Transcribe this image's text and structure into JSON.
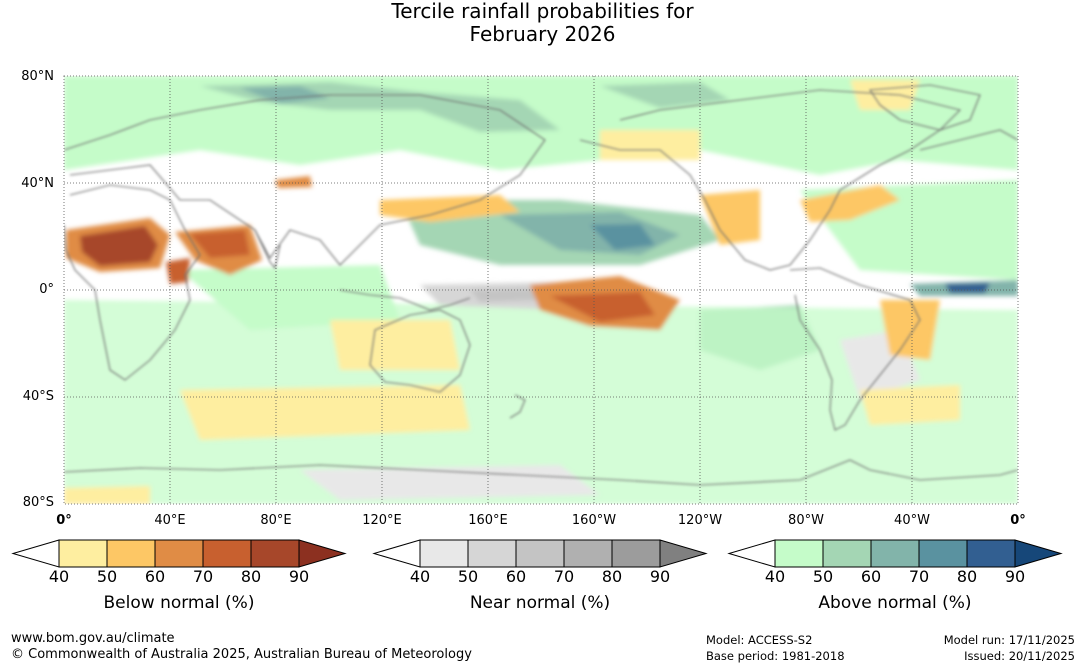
{
  "title": {
    "line1": "Tercile rainfall probabilities for",
    "line2": "February 2026"
  },
  "latitude_labels": [
    "80°N",
    "40°N",
    "0°",
    "40°S",
    "80°S"
  ],
  "longitude_labels": [
    "0°",
    "40°E",
    "80°E",
    "120°E",
    "160°E",
    "160°W",
    "120°W",
    "80°W",
    "40°W",
    "0°"
  ],
  "colorbars": [
    {
      "name": "below",
      "title": "Below normal (%)",
      "ticks": [
        "40",
        "50",
        "60",
        "70",
        "80",
        "90"
      ],
      "colors": [
        "#ffffff",
        "#feeea0",
        "#fdc765",
        "#e08c45",
        "#c8602f",
        "#a7472a",
        "#8c3020"
      ]
    },
    {
      "name": "near",
      "title": "Near normal (%)",
      "ticks": [
        "40",
        "50",
        "60",
        "70",
        "80",
        "90"
      ],
      "colors": [
        "#ffffff",
        "#e8e8e8",
        "#d6d6d6",
        "#c4c4c4",
        "#b0b0b0",
        "#9c9c9c",
        "#808080"
      ]
    },
    {
      "name": "above",
      "title": "Above normal (%)",
      "ticks": [
        "40",
        "50",
        "60",
        "70",
        "80",
        "90"
      ],
      "colors": [
        "#ffffff",
        "#c5fcc9",
        "#a4d6b4",
        "#82b4aa",
        "#5a92a0",
        "#325f91",
        "#164779"
      ]
    }
  ],
  "footer": {
    "website": "www.bom.gov.au/climate",
    "copyright": "© Commonwealth of Australia 2025, Australian Bureau of Meteorology",
    "model": "Model: ACCESS-S2",
    "base_period": "Base period: 1981-2018",
    "model_run": "Model run: 17/11/2025",
    "issued": "Issued: 20/11/2025"
  }
}
